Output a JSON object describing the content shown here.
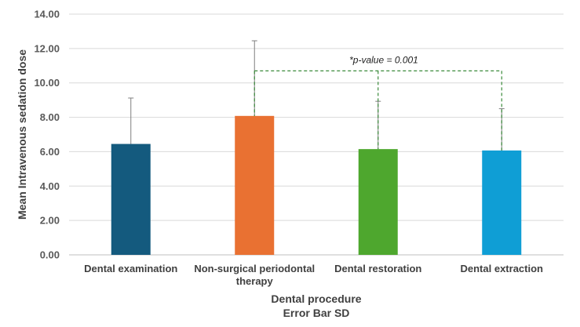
{
  "chart_data": {
    "type": "bar",
    "categories": [
      [
        "Dental examination"
      ],
      [
        "Non-surgical periodontal",
        "therapy"
      ],
      [
        "Dental restoration"
      ],
      [
        "Dental extraction"
      ]
    ],
    "values": [
      6.45,
      8.08,
      6.15,
      6.07
    ],
    "error_sd": [
      2.67,
      4.37,
      2.78,
      2.43
    ],
    "colors": [
      "#145A7E",
      "#E97132",
      "#4EA72E",
      "#0F9ED5"
    ],
    "ylim": [
      0,
      14
    ],
    "yticks": [
      0,
      2,
      4,
      6,
      8,
      10,
      12,
      14
    ],
    "ytick_labels": [
      "0.00",
      "2.00",
      "4.00",
      "6.00",
      "8.00",
      "10.00",
      "12.00",
      "14.00"
    ],
    "ylabel": "Mean Intravenous sedation dose",
    "xlabel": "Dental procedure",
    "xlabel_sub": "Error Bar SD",
    "grid": true,
    "annotation": {
      "text": "*p-value = 0.001",
      "from_category": 1,
      "to_categories": [
        2,
        3
      ],
      "level": 10.7,
      "color": "#3A8A3A"
    }
  }
}
